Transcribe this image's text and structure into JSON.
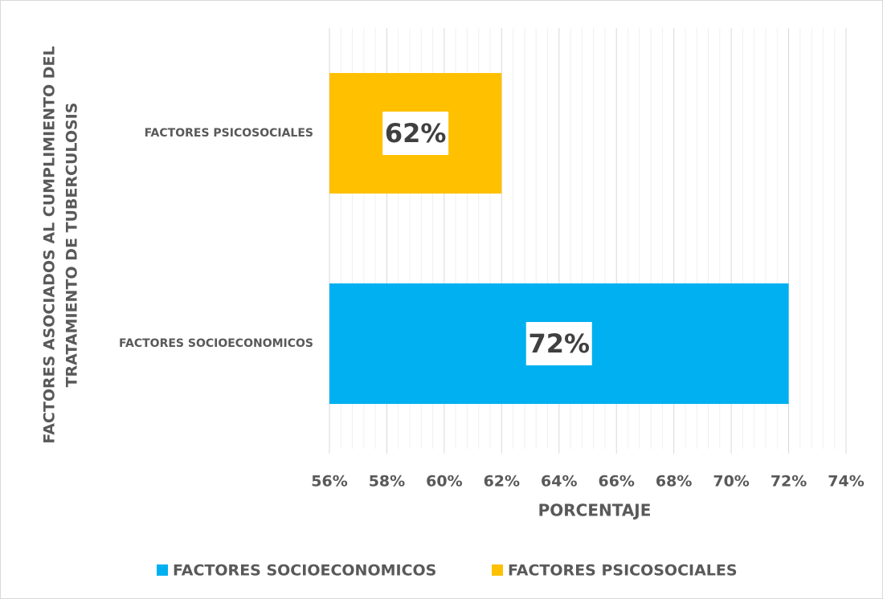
{
  "chart_data": {
    "type": "barh",
    "y_label": [
      "FACTORES ASOCIADOS AL CUMPLIMIENTO DEL",
      "TRATAMIENTO DE TUBERCULOSIS"
    ],
    "x_label": "PORCENTAJE",
    "categories": [
      "FACTORES SOCIOECONOMICOS",
      "FACTORES PSICOSOCIALES"
    ],
    "values": [
      72,
      62
    ],
    "value_labels": [
      "72%",
      "62%"
    ],
    "colors": [
      "#00b0f0",
      "#ffc000"
    ],
    "xlim": [
      56,
      74
    ],
    "xticks": [
      {
        "value": 56,
        "label": "56%"
      },
      {
        "value": 58,
        "label": "58%"
      },
      {
        "value": 60,
        "label": "60%"
      },
      {
        "value": 62,
        "label": "62%"
      },
      {
        "value": 64,
        "label": "64%"
      },
      {
        "value": 66,
        "label": "66%"
      },
      {
        "value": 68,
        "label": "68%"
      },
      {
        "value": 70,
        "label": "70%"
      },
      {
        "value": 72,
        "label": "72%"
      },
      {
        "value": 74,
        "label": "74%"
      }
    ],
    "grid": true,
    "minor_divisions": 5,
    "legend": "bottom"
  }
}
